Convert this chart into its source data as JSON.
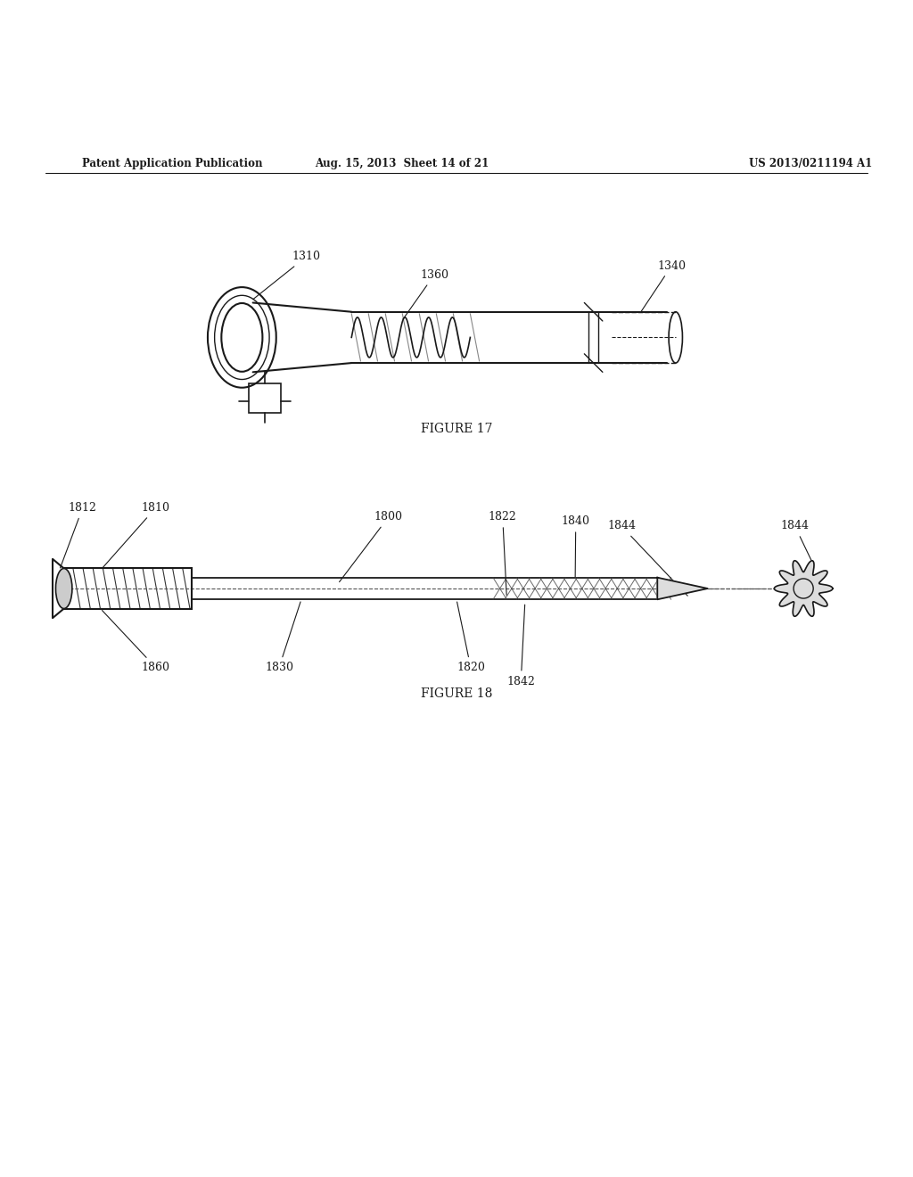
{
  "background_color": "#ffffff",
  "header_left": "Patent Application Publication",
  "header_middle": "Aug. 15, 2013  Sheet 14 of 21",
  "header_right": "US 2013/0211194 A1",
  "figure17_caption": "FIGURE 17",
  "figure18_caption": "FIGURE 18",
  "line_color": "#1a1a1a",
  "text_color": "#1a1a1a"
}
